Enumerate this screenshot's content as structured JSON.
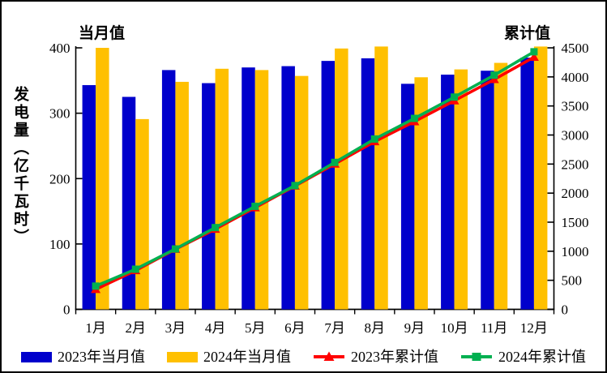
{
  "titles": {
    "left_axis_title": "当月值",
    "right_axis_title": "累计值",
    "y_axis_label": "发电量（亿千瓦时）"
  },
  "colors": {
    "bar_2023": "#0000CC",
    "bar_2024": "#FFC000",
    "line_2023": "#FF0000",
    "line_2024": "#00B050",
    "axis": "#000000"
  },
  "chart_data": {
    "type": "bar",
    "subtype": "bar-line-combo",
    "categories": [
      "1月",
      "2月",
      "3月",
      "4月",
      "5月",
      "6月",
      "7月",
      "8月",
      "9月",
      "10月",
      "11月",
      "12月"
    ],
    "series": [
      {
        "name": "2023年当月值",
        "type": "bar",
        "axis": "left",
        "color": "#0000CC",
        "marker": "rect",
        "values": [
          343,
          325,
          366,
          346,
          370,
          372,
          380,
          384,
          345,
          359,
          365,
          385
        ]
      },
      {
        "name": "2024年当月值",
        "type": "bar",
        "axis": "left",
        "color": "#FFC000",
        "marker": "rect",
        "values": [
          400,
          291,
          348,
          368,
          366,
          357,
          399,
          402,
          355,
          367,
          377,
          402
        ]
      },
      {
        "name": "2023年累计值",
        "type": "line",
        "axis": "right",
        "color": "#FF0000",
        "marker": "triangle",
        "values": [
          343,
          668,
          1034,
          1380,
          1750,
          2122,
          2502,
          2886,
          3231,
          3590,
          3955,
          4340
        ]
      },
      {
        "name": "2024年累计值",
        "type": "line",
        "axis": "right",
        "color": "#00B050",
        "marker": "square",
        "values": [
          400,
          691,
          1039,
          1407,
          1773,
          2130,
          2529,
          2931,
          3286,
          3653,
          4030,
          4432
        ]
      }
    ],
    "left_axis": {
      "title": "当月值",
      "min": 0,
      "max": 400,
      "step": 100
    },
    "right_axis": {
      "title": "累计值",
      "min": 0,
      "max": 4500,
      "step": 500
    },
    "ylabel": "发电量（亿千瓦时）",
    "grid": false,
    "legend_position": "bottom"
  }
}
